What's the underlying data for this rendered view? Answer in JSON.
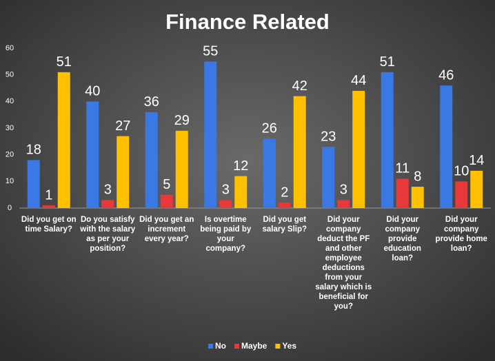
{
  "chart_data": {
    "type": "bar",
    "title": "Finance Related",
    "categories": [
      "Did you get on time Salary?",
      "Do you satisfy with the salary as per your position?",
      "Did you get an increment every year?",
      "Is overtime being paid by your company?",
      "Did you get salary Slip?",
      "Did your company deduct the PF and other employee deductions from your salary which is beneficial for you?",
      "Did your company provide education loan?",
      "Did your company provide home loan?"
    ],
    "series": [
      {
        "name": "No",
        "color": "#3a78e6",
        "values": [
          18,
          40,
          36,
          55,
          26,
          23,
          51,
          46
        ]
      },
      {
        "name": "Maybe",
        "color": "#e8393a",
        "values": [
          1,
          3,
          5,
          3,
          2,
          3,
          11,
          10
        ]
      },
      {
        "name": "Yes",
        "color": "#ffc000",
        "values": [
          51,
          27,
          29,
          12,
          42,
          44,
          8,
          14
        ]
      }
    ],
    "ylim": [
      0,
      60
    ],
    "yticks": [
      0,
      10,
      20,
      30,
      40,
      50,
      60
    ],
    "grid": false,
    "legend": "bottom"
  }
}
